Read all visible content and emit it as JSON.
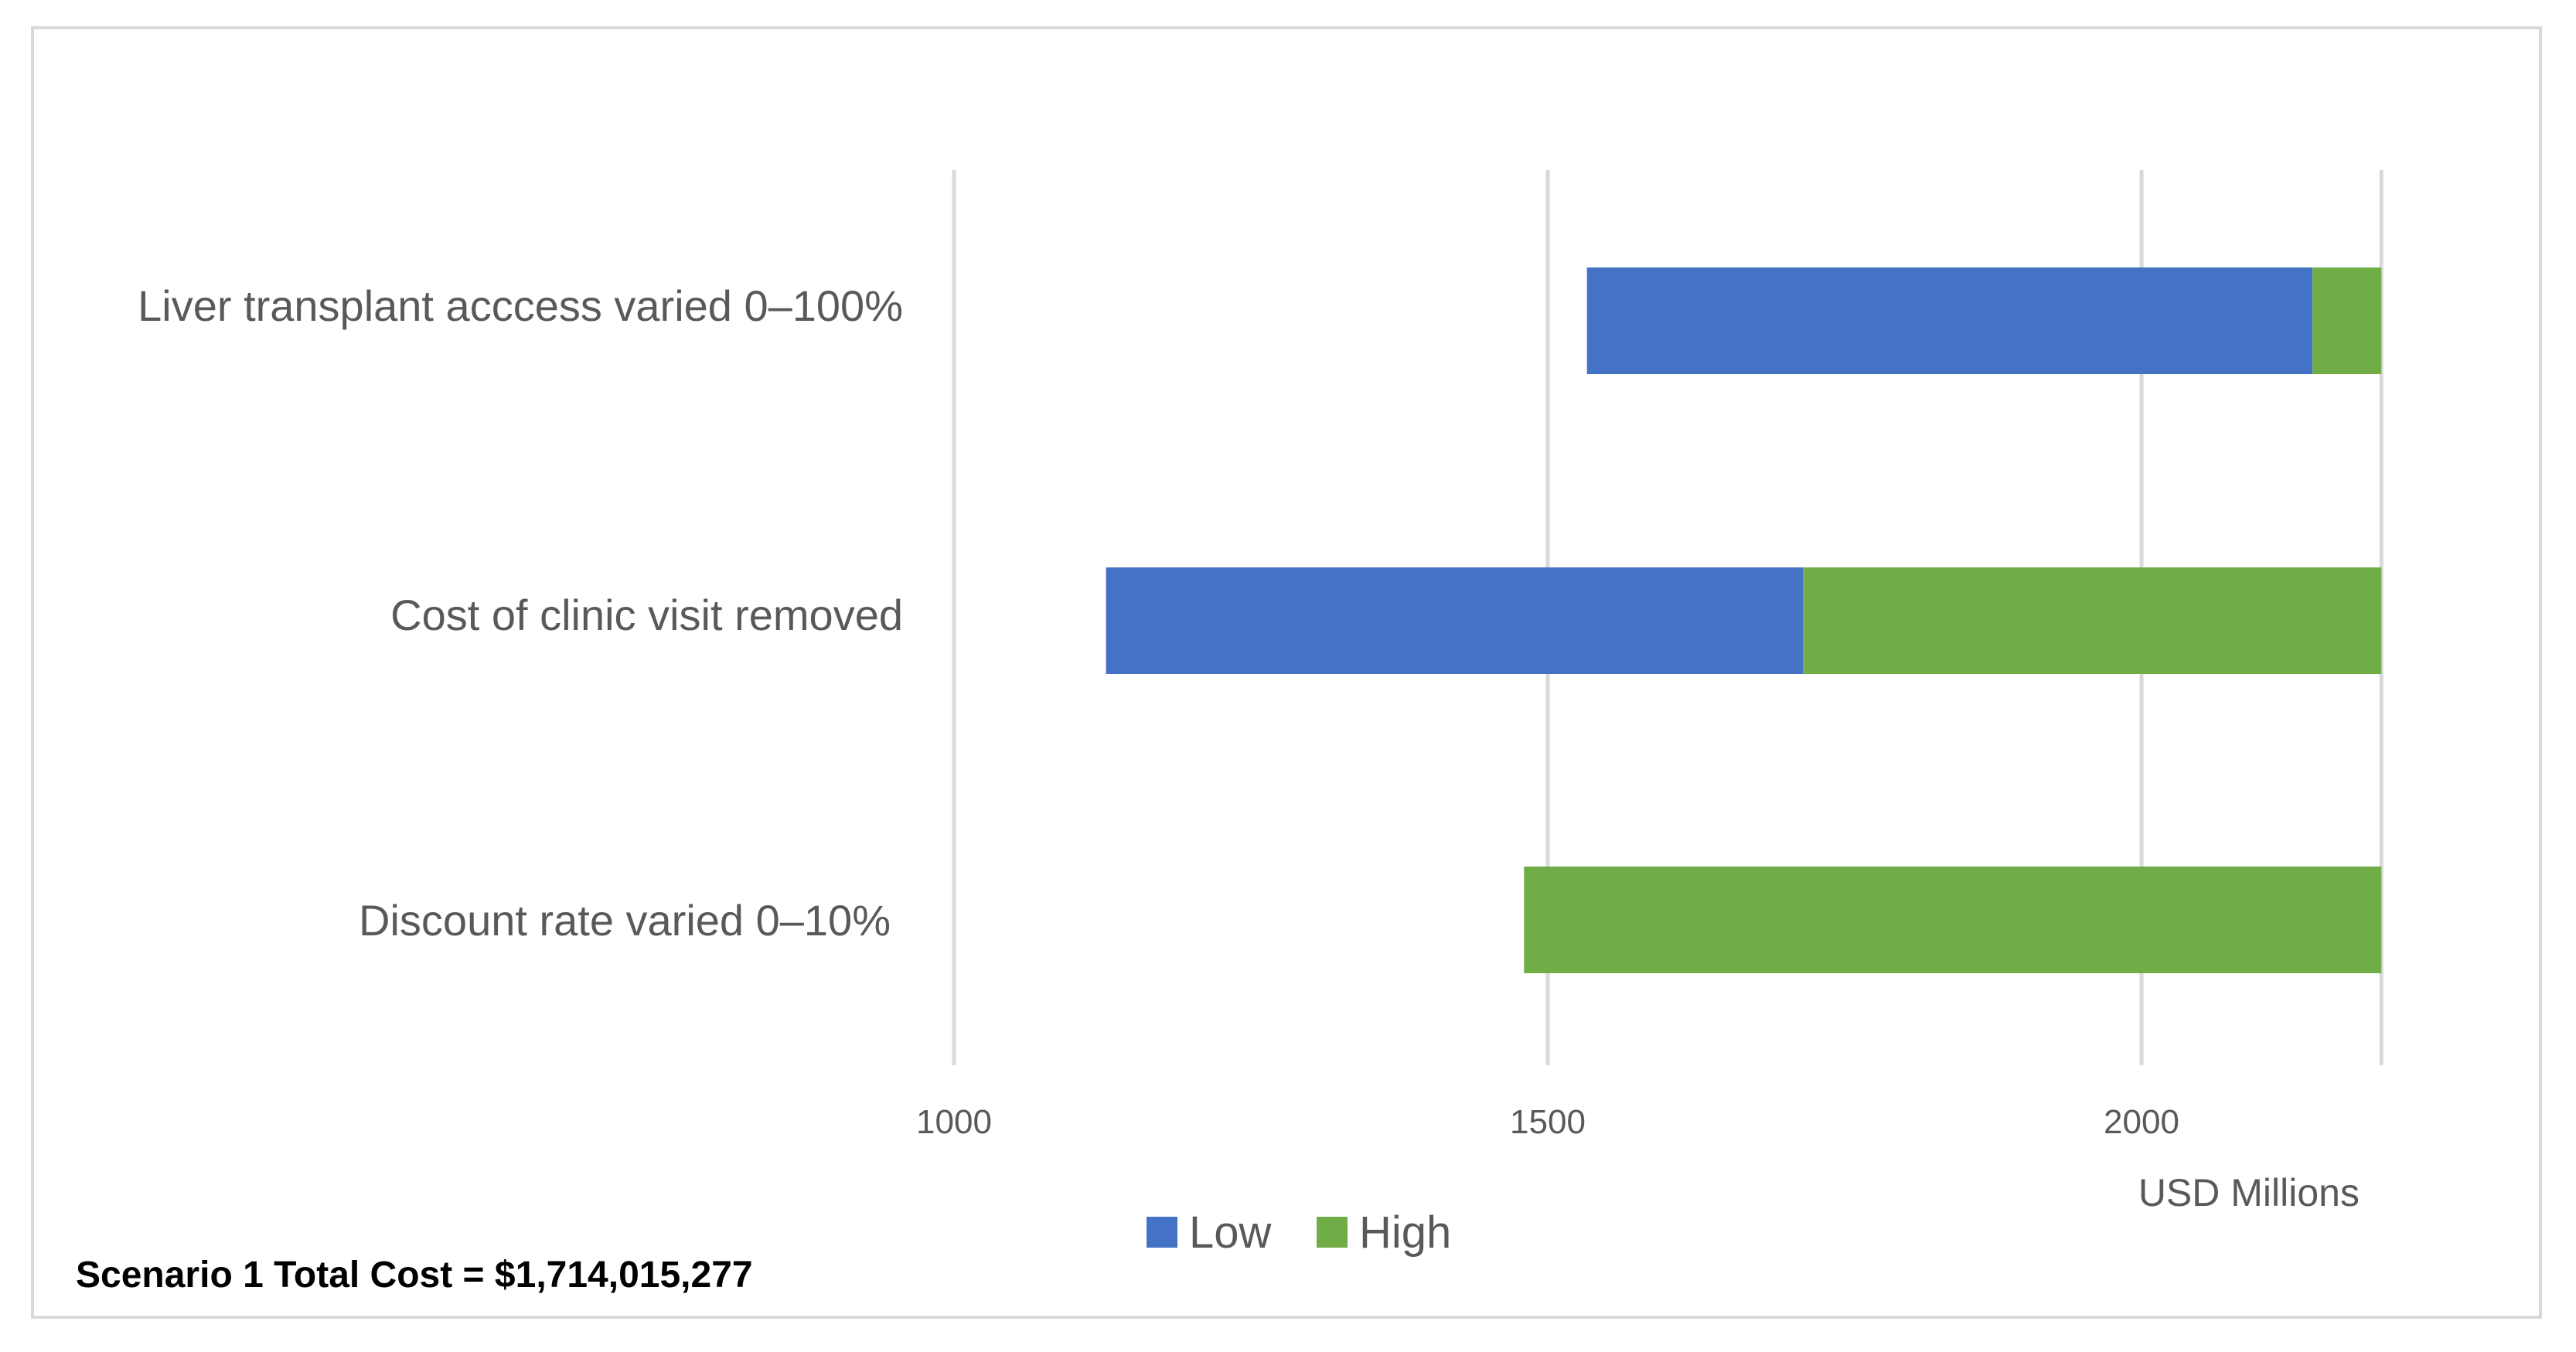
{
  "chart_data": {
    "type": "bar",
    "orientation": "horizontal",
    "stacked": true,
    "categories": [
      "Liver transplant acccess varied 0–100%",
      "Cost of clinic visit removed",
      "Discount rate varied 0–10%"
    ],
    "series": [
      {
        "name": "Low",
        "color": "#4472c4",
        "ranges": [
          [
            1533,
            2144
          ],
          [
            1128,
            1715
          ],
          null
        ]
      },
      {
        "name": "High",
        "color": "#70ad47",
        "ranges": [
          [
            2144,
            2202
          ],
          [
            1715,
            2202
          ],
          [
            1480,
            2202
          ]
        ]
      }
    ],
    "x_ticks": [
      "1000",
      "1500",
      "2000"
    ],
    "xlim": [
      1000,
      2202
    ],
    "unit_label": "USD Millions",
    "grid": true,
    "legend_position": "bottom",
    "note": "Scenario 1 Total Cost = $1,714,015,277",
    "gridline_color": "#d9d9d9"
  }
}
